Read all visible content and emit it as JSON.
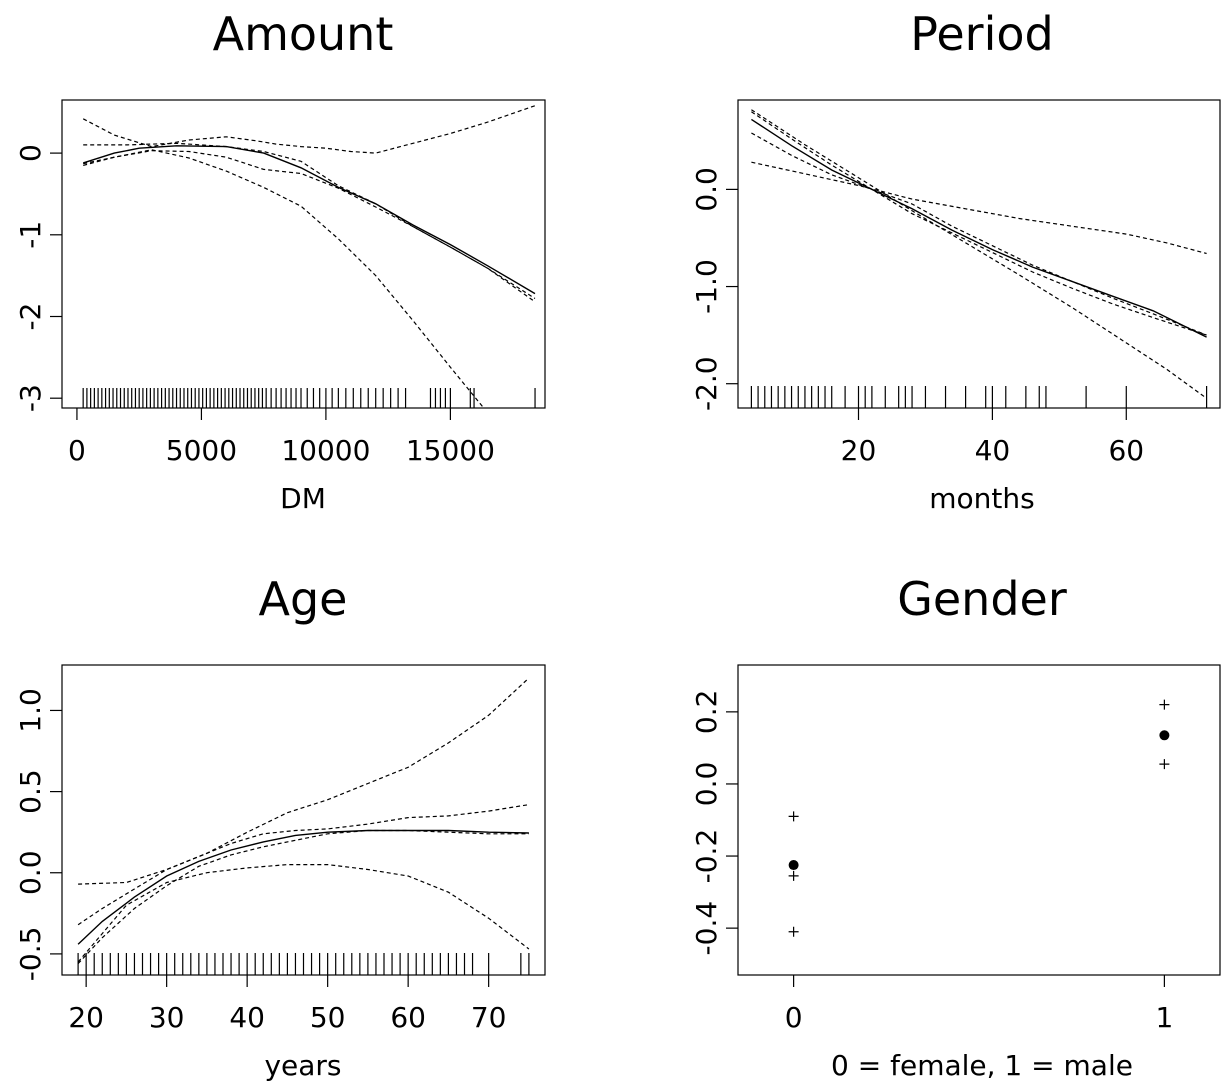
{
  "chart_data": [
    {
      "type": "line",
      "title": "Amount",
      "xlabel": "DM",
      "ylabel": "",
      "xlim": [
        -600,
        18800
      ],
      "ylim": [
        -3.12,
        0.65
      ],
      "xticks": [
        0,
        5000,
        10000,
        15000
      ],
      "xtick_labels": [
        "0",
        "5000",
        "10000",
        "15000"
      ],
      "yticks": [
        0,
        -1,
        -2,
        -3
      ],
      "ytick_labels": [
        "0",
        "-1",
        "-2",
        "-3"
      ],
      "series": [
        {
          "role": "estimate",
          "x": [
            250,
            1500,
            2500,
            4000,
            6000,
            7500,
            9000,
            10500,
            12000,
            13500,
            15000,
            16500,
            18400
          ],
          "y": [
            -0.12,
            0.0,
            0.06,
            0.09,
            0.08,
            0.0,
            -0.18,
            -0.42,
            -0.62,
            -0.88,
            -1.12,
            -1.38,
            -1.72
          ]
        },
        {
          "role": "pointwise band",
          "x": [
            250,
            2000,
            4000,
            6000,
            7500,
            9000,
            10500,
            12000,
            13500,
            15000,
            16500,
            18400
          ],
          "y": [
            0.1,
            0.1,
            0.12,
            0.08,
            0.02,
            -0.1,
            -0.4,
            -0.62,
            -0.9,
            -1.15,
            -1.41,
            -1.78
          ]
        },
        {
          "role": "pointwise band",
          "x": [
            250,
            1500,
            3000,
            4500,
            6000,
            7500,
            9000,
            10500,
            12000,
            13500,
            15000,
            16500,
            18400
          ],
          "y": [
            -0.15,
            -0.05,
            0.03,
            0.02,
            -0.05,
            -0.2,
            -0.25,
            -0.43,
            -0.66,
            -0.9,
            -1.15,
            -1.41,
            -1.82
          ]
        },
        {
          "role": "upper bound",
          "x": [
            250,
            1500,
            3000,
            4500,
            6000,
            7200,
            8000,
            9000,
            10000,
            11000,
            12000,
            13500,
            15000,
            16500,
            18400
          ],
          "y": [
            0.42,
            0.22,
            0.08,
            0.16,
            0.2,
            0.15,
            0.11,
            0.08,
            0.06,
            0.02,
            0.0,
            0.12,
            0.24,
            0.38,
            0.58
          ]
        },
        {
          "role": "lower bound",
          "x": [
            250,
            1500,
            3000,
            4500,
            6000,
            7500,
            9000,
            10500,
            12000,
            13500,
            15000,
            16500
          ],
          "y": [
            -0.13,
            -0.05,
            0.04,
            -0.06,
            -0.22,
            -0.42,
            -0.65,
            -1.05,
            -1.5,
            -2.05,
            -2.62,
            -3.18
          ]
        }
      ],
      "rug": [
        250,
        400,
        550,
        700,
        850,
        1000,
        1150,
        1300,
        1450,
        1600,
        1750,
        1900,
        2050,
        2200,
        2350,
        2500,
        2650,
        2800,
        2950,
        3100,
        3250,
        3400,
        3550,
        3700,
        3850,
        4000,
        4150,
        4300,
        4450,
        4600,
        4750,
        4900,
        5050,
        5200,
        5350,
        5500,
        5650,
        5800,
        5950,
        6100,
        6250,
        6400,
        6550,
        6700,
        6850,
        7000,
        7150,
        7300,
        7450,
        7600,
        7800,
        8000,
        8200,
        8400,
        8600,
        8800,
        9000,
        9250,
        9500,
        9750,
        10000,
        10250,
        10500,
        10800,
        11100,
        11400,
        11700,
        12000,
        12300,
        12600,
        12900,
        13200,
        14200,
        14400,
        14600,
        14800,
        15000,
        15800,
        15950,
        18400
      ]
    },
    {
      "type": "line",
      "title": "Period",
      "xlabel": "months",
      "ylabel": "",
      "xlim": [
        2,
        74
      ],
      "ylim": [
        -2.25,
        0.92
      ],
      "xticks": [
        20,
        40,
        60
      ],
      "xtick_labels": [
        "20",
        "40",
        "60"
      ],
      "yticks": [
        0.0,
        -1.0,
        -2.0
      ],
      "ytick_labels": [
        "0.0",
        "-1.0",
        "-2.0"
      ],
      "series": [
        {
          "role": "estimate",
          "x": [
            4,
            10,
            16,
            22,
            28,
            34,
            40,
            46,
            52,
            58,
            64,
            72
          ],
          "y": [
            0.72,
            0.45,
            0.2,
            0.0,
            -0.2,
            -0.42,
            -0.62,
            -0.8,
            -0.95,
            -1.1,
            -1.25,
            -1.52
          ]
        },
        {
          "role": "pointwise band",
          "x": [
            4,
            10,
            16,
            22,
            28,
            34,
            40,
            46,
            52,
            58,
            64,
            72
          ],
          "y": [
            0.8,
            0.52,
            0.25,
            0.0,
            -0.25,
            -0.45,
            -0.65,
            -0.85,
            -1.02,
            -1.18,
            -1.32,
            -1.5
          ]
        },
        {
          "role": "pointwise band",
          "x": [
            4,
            10,
            16,
            22,
            28,
            34,
            40,
            46,
            52,
            58,
            64,
            72
          ],
          "y": [
            0.58,
            0.35,
            0.15,
            0.0,
            -0.15,
            -0.38,
            -0.58,
            -0.78,
            -0.95,
            -1.12,
            -1.28,
            -1.5
          ]
        },
        {
          "role": "upper bound",
          "x": [
            4,
            12,
            20,
            28,
            36,
            44,
            52,
            60,
            66,
            72
          ],
          "y": [
            0.28,
            0.16,
            0.04,
            -0.1,
            -0.2,
            -0.3,
            -0.38,
            -0.46,
            -0.55,
            -0.66
          ]
        },
        {
          "role": "lower bound",
          "x": [
            4,
            12,
            20,
            28,
            36,
            44,
            52,
            60,
            66,
            72
          ],
          "y": [
            0.82,
            0.46,
            0.12,
            -0.22,
            -0.55,
            -0.88,
            -1.22,
            -1.58,
            -1.85,
            -2.15
          ]
        }
      ],
      "rug": [
        4,
        5,
        6,
        7,
        8,
        9,
        10,
        11,
        12,
        13,
        14,
        15,
        16,
        18,
        20,
        21,
        22,
        24,
        26,
        27,
        28,
        30,
        33,
        36,
        39,
        40,
        42,
        45,
        47,
        48,
        54,
        60,
        72
      ]
    },
    {
      "type": "line",
      "title": "Age",
      "xlabel": "years",
      "ylabel": "",
      "xlim": [
        17,
        77
      ],
      "ylim": [
        -0.63,
        1.28
      ],
      "xticks": [
        20,
        30,
        40,
        50,
        60,
        70
      ],
      "xtick_labels": [
        "20",
        "30",
        "40",
        "50",
        "60",
        "70"
      ],
      "yticks": [
        -0.5,
        0.0,
        0.5,
        1.0
      ],
      "ytick_labels": [
        "-0.5",
        "0.0",
        "0.5",
        "1.0"
      ],
      "series": [
        {
          "role": "estimate",
          "x": [
            19,
            22,
            26,
            30,
            34,
            38,
            42,
            46,
            50,
            55,
            60,
            65,
            70,
            75
          ],
          "y": [
            -0.44,
            -0.3,
            -0.15,
            -0.02,
            0.07,
            0.14,
            0.19,
            0.23,
            0.25,
            0.26,
            0.26,
            0.26,
            0.25,
            0.245
          ]
        },
        {
          "role": "pointwise band",
          "x": [
            19,
            22,
            26,
            30,
            34,
            38,
            42,
            46,
            50,
            55,
            60,
            65,
            70,
            75
          ],
          "y": [
            -0.32,
            -0.22,
            -0.1,
            0.02,
            0.1,
            0.18,
            0.24,
            0.26,
            0.27,
            0.3,
            0.34,
            0.35,
            0.38,
            0.42
          ]
        },
        {
          "role": "pointwise band",
          "x": [
            19,
            22,
            26,
            30,
            34,
            38,
            42,
            46,
            50,
            55,
            60,
            65,
            70,
            75
          ],
          "y": [
            -0.56,
            -0.4,
            -0.22,
            -0.08,
            0.04,
            0.11,
            0.16,
            0.2,
            0.24,
            0.26,
            0.26,
            0.25,
            0.24,
            0.24
          ]
        },
        {
          "role": "upper bound",
          "x": [
            19,
            25,
            30,
            35,
            40,
            45,
            50,
            55,
            60,
            65,
            70,
            75
          ],
          "y": [
            -0.07,
            -0.06,
            0.02,
            0.12,
            0.25,
            0.37,
            0.45,
            0.55,
            0.65,
            0.8,
            0.97,
            1.2
          ]
        },
        {
          "role": "lower bound",
          "x": [
            19,
            25,
            30,
            35,
            40,
            45,
            50,
            55,
            60,
            65,
            70,
            75
          ],
          "y": [
            -0.55,
            -0.2,
            -0.06,
            0.0,
            0.03,
            0.05,
            0.05,
            0.02,
            -0.02,
            -0.12,
            -0.28,
            -0.47
          ]
        }
      ],
      "rug": [
        19,
        20,
        21,
        22,
        23,
        24,
        25,
        26,
        27,
        28,
        29,
        30,
        31,
        32,
        33,
        34,
        35,
        36,
        37,
        38,
        39,
        40,
        41,
        42,
        43,
        44,
        45,
        46,
        47,
        48,
        49,
        50,
        51,
        52,
        53,
        54,
        55,
        56,
        57,
        58,
        59,
        60,
        61,
        62,
        63,
        64,
        65,
        66,
        67,
        68,
        70,
        74,
        75
      ]
    },
    {
      "type": "scatter",
      "title": "Gender",
      "xlabel": "0 = female, 1 = male",
      "ylabel": "",
      "xlim": [
        -0.15,
        1.15
      ],
      "ylim": [
        -0.53,
        0.33
      ],
      "xticks": [
        0,
        1
      ],
      "xtick_labels": [
        "0",
        "1"
      ],
      "yticks": [
        -0.4,
        -0.2,
        0.0,
        0.2
      ],
      "ytick_labels": [
        "-0.4",
        "-0.2",
        "0.0",
        "0.2"
      ],
      "estimates": [
        {
          "x": 0,
          "y": -0.225
        },
        {
          "x": 1,
          "y": 0.135
        }
      ],
      "bounds": [
        {
          "x": 0,
          "y": -0.09
        },
        {
          "x": 0,
          "y": -0.255
        },
        {
          "x": 0,
          "y": -0.41
        },
        {
          "x": 1,
          "y": 0.22
        },
        {
          "x": 1,
          "y": 0.055
        }
      ]
    }
  ]
}
